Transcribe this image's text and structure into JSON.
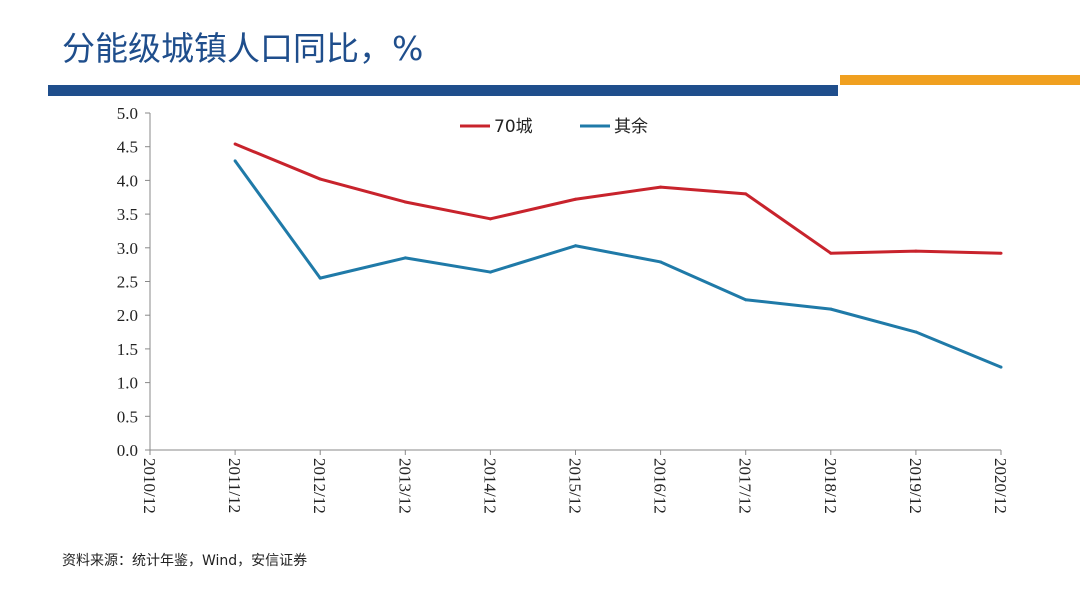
{
  "header": {
    "title": "分能级城镇人口同比，%"
  },
  "footer": {
    "source": "资料来源：统计年鉴，Wind，安信证券"
  },
  "chart_data": {
    "type": "line",
    "title": "分能级城镇人口同比，%",
    "x": [
      "2010/12",
      "2011/12",
      "2012/12",
      "2013/12",
      "2014/12",
      "2015/12",
      "2016/12",
      "2017/12",
      "2018/12",
      "2019/12",
      "2020/12"
    ],
    "yticks": [
      "0.0",
      "0.5",
      "1.0",
      "1.5",
      "2.0",
      "2.5",
      "3.0",
      "3.5",
      "4.0",
      "4.5",
      "5.0"
    ],
    "ylim": [
      0,
      5
    ],
    "legend_position": "top-center",
    "series": [
      {
        "name": "70城",
        "color": "#c8232c",
        "values": [
          null,
          4.54,
          4.02,
          3.68,
          3.43,
          3.72,
          3.9,
          3.8,
          2.92,
          2.95,
          2.92
        ]
      },
      {
        "name": "其余",
        "color": "#1f7aa8",
        "values": [
          null,
          4.29,
          2.55,
          2.85,
          2.64,
          3.03,
          2.79,
          2.23,
          2.09,
          1.75,
          1.23
        ]
      }
    ]
  }
}
